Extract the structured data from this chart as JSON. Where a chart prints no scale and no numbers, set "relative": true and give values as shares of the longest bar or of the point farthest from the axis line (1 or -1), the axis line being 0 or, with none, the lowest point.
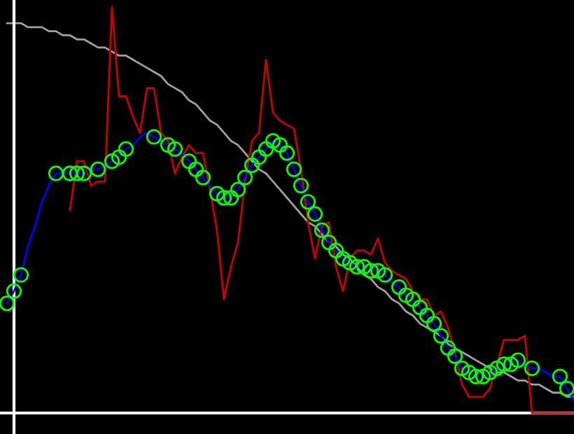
{
  "chart_data": {
    "type": "line",
    "relative": true,
    "legend": false,
    "categories": [
      null,
      null,
      null,
      null,
      null,
      null,
      null,
      null,
      null,
      null,
      null,
      null,
      null,
      null,
      null,
      null,
      null,
      null,
      null,
      null,
      null,
      null,
      null,
      null,
      null,
      null,
      null,
      null,
      null,
      null,
      null,
      null,
      null,
      null,
      null,
      null,
      null,
      null,
      null,
      null,
      null,
      null,
      null,
      null,
      null,
      null,
      null,
      null,
      null,
      null,
      null,
      null,
      null,
      null,
      null,
      null,
      null,
      null,
      null,
      null,
      null,
      null,
      null,
      null,
      null,
      null,
      null,
      null,
      null,
      null,
      null,
      null,
      null,
      null,
      null,
      null,
      null,
      null,
      null,
      null,
      null,
      null
    ],
    "series": [
      {
        "type": "line",
        "color": "#a0a0a0",
        "values": [
          0.96,
          0.96,
          0.96,
          0.95,
          0.95,
          0.95,
          0.94,
          0.94,
          0.93,
          0.93,
          0.92,
          0.92,
          0.91,
          0.9,
          0.9,
          0.89,
          0.88,
          0.88,
          0.87,
          0.86,
          0.85,
          0.84,
          0.83,
          0.81,
          0.8,
          0.79,
          0.77,
          0.76,
          0.74,
          0.72,
          0.71,
          0.69,
          0.67,
          0.66,
          0.64,
          0.62,
          0.6,
          0.59,
          0.57,
          0.55,
          0.53,
          0.51,
          0.49,
          0.47,
          0.46,
          0.44,
          0.42,
          0.41,
          0.39,
          0.38,
          0.36,
          0.34,
          0.33,
          0.31,
          0.3,
          0.28,
          0.27,
          0.25,
          0.24,
          0.22,
          0.21,
          0.2,
          0.19,
          0.17,
          0.16,
          0.15,
          0.14,
          0.13,
          0.12,
          0.11,
          0.1,
          0.1,
          0.09,
          0.08,
          0.08,
          0.07,
          0.07,
          0.06,
          0.05,
          0.05,
          0.04,
          0.04
        ]
      },
      {
        "type": "line",
        "color": "#cc0000",
        "values": [
          null,
          null,
          null,
          null,
          null,
          null,
          null,
          null,
          null,
          0.5,
          0.62,
          0.62,
          0.56,
          0.57,
          0.57,
          1.0,
          0.78,
          0.78,
          0.73,
          0.69,
          0.8,
          0.8,
          0.69,
          0.67,
          0.59,
          0.63,
          0.66,
          0.64,
          0.64,
          0.55,
          0.45,
          0.28,
          0.36,
          0.42,
          0.57,
          0.67,
          0.69,
          0.87,
          0.74,
          0.72,
          0.71,
          0.7,
          0.6,
          0.47,
          0.38,
          0.46,
          0.47,
          0.36,
          0.3,
          0.38,
          0.4,
          0.4,
          0.39,
          0.43,
          0.37,
          0.35,
          0.34,
          0.33,
          0.3,
          0.28,
          0.28,
          0.24,
          0.25,
          0.21,
          0.15,
          0.07,
          0.04,
          0.04,
          0.04,
          0.06,
          0.12,
          0.18,
          0.18,
          0.18,
          0.19,
          0,
          0,
          0,
          0,
          0,
          0,
          0
        ]
      },
      {
        "type": "line",
        "color": "#0000ff",
        "marker": "circle",
        "colors": [
          "#00ff00",
          "#00ff00",
          "#00ff00",
          null,
          null,
          null,
          null,
          "#00ff00",
          null,
          "#00ff00",
          "#00ff00",
          "#00ff00",
          null,
          "#00ff00",
          null,
          "#00ff00",
          "#00ff00",
          "#00ff00",
          null,
          null,
          null,
          "#00ff00",
          null,
          "#00ff00",
          "#00ff00",
          null,
          "#00ff00",
          "#00ff00",
          "#00ff00",
          null,
          "#00ff00",
          "#00ff00",
          "#00ff00",
          "#00ff00",
          "#00ff00",
          "#00ff00",
          "#00ff00",
          "#00ff00",
          "#00ff00",
          "#00ff00",
          "#00ff00",
          "#00ff00",
          "#00ff00",
          "#00ff00",
          "#00ff00",
          "#00ff00",
          "#00ff00",
          "#00ff00",
          "#00ff00",
          "#00ff00",
          "#00ff00",
          "#00ff00",
          "#00ff00",
          "#00ff00",
          "#00ff00",
          null,
          "#00ff00",
          "#00ff00",
          "#00ff00",
          "#00ff00",
          "#00ff00",
          "#00ff00",
          "#00ff00",
          "#00ff00",
          "#00ff00",
          "#00ff00",
          "#00ff00",
          "#00ff00",
          "#00ff00",
          "#00ff00",
          "#00ff00",
          "#00ff00",
          "#00ff00",
          "#00ff00",
          null,
          "#00ff00",
          null,
          null,
          null,
          "#00ff00",
          "#00ff00",
          null
        ],
        "values": [
          0.27,
          0.3,
          0.34,
          0.41,
          0.46,
          0.52,
          0.56,
          0.59,
          0.59,
          0.59,
          0.59,
          0.59,
          0.6,
          0.6,
          0.61,
          0.62,
          0.63,
          0.65,
          0.66,
          0.68,
          0.69,
          0.68,
          0.67,
          0.66,
          0.65,
          0.64,
          0.62,
          0.6,
          0.58,
          0.56,
          0.54,
          0.53,
          0.53,
          0.55,
          0.58,
          0.61,
          0.63,
          0.65,
          0.67,
          0.66,
          0.64,
          0.6,
          0.56,
          0.52,
          0.49,
          0.45,
          0.42,
          0.4,
          0.38,
          0.37,
          0.36,
          0.36,
          0.35,
          0.35,
          0.34,
          0.32,
          0.31,
          0.29,
          0.28,
          0.26,
          0.24,
          0.22,
          0.19,
          0.16,
          0.14,
          0.11,
          0.1,
          0.09,
          0.09,
          0.1,
          0.11,
          0.12,
          0.12,
          0.13,
          0.12,
          0.11,
          0.11,
          0.1,
          0.09,
          0.09,
          0.06,
          0.03
        ]
      }
    ]
  }
}
